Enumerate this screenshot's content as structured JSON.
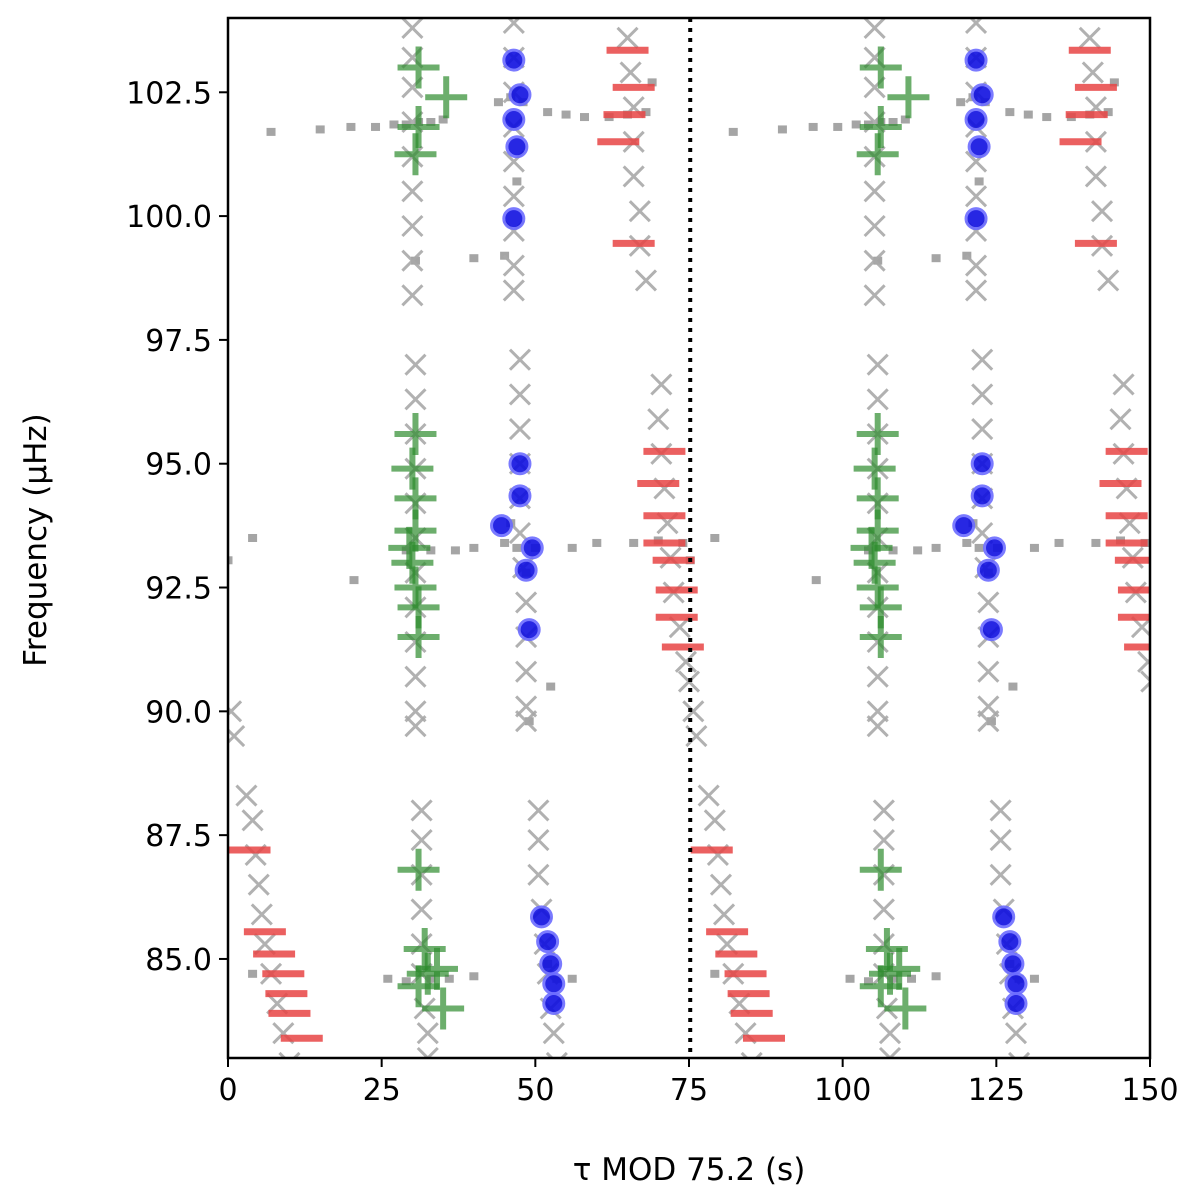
{
  "chart_data": {
    "type": "scatter",
    "title": "",
    "xlabel": "τ MOD 75.2 (s)",
    "ylabel": "Frequency (μHz)",
    "xlim": [
      0,
      150
    ],
    "ylim": [
      83.0,
      104.0
    ],
    "grid": false,
    "legend": "none",
    "xticks": [
      "0",
      "25",
      "50",
      "75",
      "100",
      "125",
      "150"
    ],
    "yticks": [
      "85.0",
      "87.5",
      "90.0",
      "92.5",
      "95.0",
      "97.5",
      "100.0",
      "102.5"
    ],
    "period": 75.2,
    "vline": {
      "x": 75.2,
      "style": "dotted",
      "color": "#000000"
    },
    "marker_colors": {
      "background_x": "#a8a8a8",
      "background_square": "#a0a0a0",
      "green_plus": "#2e8b2e",
      "blue_circle": "#1010e0",
      "red_dash": "#e84545"
    },
    "series": [
      {
        "marker": "x",
        "points": [
          [
            30,
            103.8
          ],
          [
            30,
            103.2
          ],
          [
            30,
            102.6
          ],
          [
            30,
            101.9
          ],
          [
            30,
            101.2
          ],
          [
            30,
            100.5
          ],
          [
            30,
            99.8
          ],
          [
            30,
            99.1
          ],
          [
            30,
            98.4
          ],
          [
            30.5,
            97.0
          ],
          [
            30.5,
            96.3
          ],
          [
            30.5,
            95.6
          ],
          [
            30.5,
            94.9
          ],
          [
            30.5,
            94.2
          ],
          [
            30.5,
            93.5
          ],
          [
            30.5,
            92.8
          ],
          [
            30.5,
            92.1
          ],
          [
            30.5,
            91.4
          ],
          [
            30.5,
            90.7
          ],
          [
            30.5,
            90.0
          ],
          [
            30.5,
            89.7
          ],
          [
            46.5,
            103.9
          ],
          [
            46.5,
            103.2
          ],
          [
            46.5,
            102.5
          ],
          [
            46.5,
            101.8
          ],
          [
            46.5,
            101.1
          ],
          [
            46.5,
            100.4
          ],
          [
            46.5,
            99.7
          ],
          [
            46.5,
            99.0
          ],
          [
            46.5,
            98.5
          ],
          [
            47.5,
            97.1
          ],
          [
            47.5,
            96.4
          ],
          [
            47.5,
            95.7
          ],
          [
            47.5,
            95.0
          ],
          [
            47.5,
            94.3
          ],
          [
            47.5,
            93.6
          ],
          [
            48,
            92.9
          ],
          [
            48.5,
            92.2
          ],
          [
            48.5,
            91.5
          ],
          [
            48.5,
            90.8
          ],
          [
            48.5,
            90.1
          ],
          [
            48.5,
            89.8
          ],
          [
            65,
            103.6
          ],
          [
            65.5,
            102.9
          ],
          [
            66,
            102.2
          ],
          [
            66,
            101.5
          ],
          [
            66,
            100.8
          ],
          [
            67,
            100.1
          ],
          [
            67,
            99.4
          ],
          [
            68,
            98.7
          ],
          [
            70.5,
            96.6
          ],
          [
            70,
            95.9
          ],
          [
            70.5,
            95.2
          ],
          [
            71,
            94.5
          ],
          [
            71.5,
            93.8
          ],
          [
            72,
            93.1
          ],
          [
            72.5,
            92.4
          ],
          [
            73.5,
            91.7
          ],
          [
            74.5,
            91.0
          ],
          [
            75,
            90.6
          ],
          [
            0.5,
            90.0
          ],
          [
            1,
            89.5
          ],
          [
            3,
            88.3
          ],
          [
            4,
            87.8
          ],
          [
            4.5,
            87.1
          ],
          [
            5,
            86.5
          ],
          [
            5.5,
            85.9
          ],
          [
            6,
            85.3
          ],
          [
            7,
            84.7
          ],
          [
            8,
            84.1
          ],
          [
            9,
            83.5
          ],
          [
            10,
            82.9
          ],
          [
            31.5,
            88.0
          ],
          [
            31.5,
            87.4
          ],
          [
            31.5,
            86.7
          ],
          [
            31.5,
            86.0
          ],
          [
            31.5,
            85.3
          ],
          [
            31.5,
            84.7
          ],
          [
            32,
            84.0
          ],
          [
            32.5,
            83.5
          ],
          [
            32.5,
            83.0
          ],
          [
            50.5,
            88.0
          ],
          [
            50.5,
            87.4
          ],
          [
            50.5,
            86.7
          ],
          [
            51,
            86.0
          ],
          [
            51.5,
            85.3
          ],
          [
            52,
            84.7
          ],
          [
            52.5,
            84.0
          ],
          [
            53,
            83.5
          ],
          [
            53.5,
            82.9
          ]
        ]
      },
      {
        "marker": "square",
        "points": [
          [
            7,
            101.7
          ],
          [
            15,
            101.75
          ],
          [
            20,
            101.8
          ],
          [
            24,
            101.8
          ],
          [
            27,
            101.85
          ],
          [
            29,
            101.85
          ],
          [
            31,
            101.9
          ],
          [
            33,
            101.9
          ],
          [
            35,
            101.95
          ],
          [
            44,
            102.3
          ],
          [
            46,
            102.4
          ],
          [
            48,
            102.3
          ],
          [
            52,
            102.1
          ],
          [
            55,
            102.05
          ],
          [
            58,
            102.0
          ],
          [
            62,
            102.0
          ],
          [
            65,
            102.05
          ],
          [
            68,
            102.1
          ],
          [
            69,
            102.7
          ],
          [
            30.5,
            99.1
          ],
          [
            40,
            99.15
          ],
          [
            45,
            99.2
          ],
          [
            47,
            100.7
          ],
          [
            0,
            93.05
          ],
          [
            4,
            93.5
          ],
          [
            20.5,
            92.65
          ],
          [
            29,
            93.25
          ],
          [
            33,
            93.25
          ],
          [
            37,
            93.25
          ],
          [
            40,
            93.3
          ],
          [
            45,
            93.4
          ],
          [
            47,
            93.3
          ],
          [
            50,
            93.3
          ],
          [
            56,
            93.3
          ],
          [
            60,
            93.4
          ],
          [
            66,
            93.4
          ],
          [
            70,
            93.45
          ],
          [
            74,
            93.4
          ],
          [
            46,
            93.8
          ],
          [
            48.5,
            92.8
          ],
          [
            52.5,
            90.5
          ],
          [
            49,
            89.8
          ],
          [
            4,
            84.7
          ],
          [
            26,
            84.6
          ],
          [
            29,
            84.55
          ],
          [
            33,
            84.6
          ],
          [
            36,
            84.6
          ],
          [
            40,
            84.65
          ],
          [
            52,
            84.9
          ],
          [
            53.5,
            84.6
          ],
          [
            56,
            84.6
          ]
        ]
      },
      {
        "marker": "plus",
        "points": [
          [
            31,
            103.0
          ],
          [
            35.5,
            102.4
          ],
          [
            31,
            101.8
          ],
          [
            30.5,
            101.25
          ],
          [
            30.5,
            95.6
          ],
          [
            30,
            94.9
          ],
          [
            30.5,
            94.3
          ],
          [
            30.5,
            93.65
          ],
          [
            29.5,
            93.3
          ],
          [
            30,
            93.0
          ],
          [
            30.5,
            92.5
          ],
          [
            31,
            92.1
          ],
          [
            31,
            91.5
          ],
          [
            31,
            86.8
          ],
          [
            32,
            85.2
          ],
          [
            32.5,
            84.7
          ],
          [
            31,
            84.45
          ],
          [
            34,
            84.8
          ],
          [
            35,
            84.0
          ]
        ]
      },
      {
        "marker": "circle",
        "points": [
          [
            46.5,
            103.15
          ],
          [
            47.5,
            102.45
          ],
          [
            46.5,
            101.95
          ],
          [
            47,
            101.4
          ],
          [
            46.5,
            99.95
          ],
          [
            47.5,
            95.0
          ],
          [
            47.5,
            94.35
          ],
          [
            44.5,
            93.75
          ],
          [
            49.5,
            93.3
          ],
          [
            48.5,
            92.85
          ],
          [
            49,
            91.65
          ],
          [
            51,
            85.85
          ],
          [
            52,
            85.35
          ],
          [
            52.5,
            84.9
          ],
          [
            53,
            84.5
          ],
          [
            53,
            84.1
          ]
        ]
      },
      {
        "marker": "dash",
        "points": [
          [
            65,
            103.35
          ],
          [
            66,
            102.6
          ],
          [
            64.5,
            102.05
          ],
          [
            63.5,
            101.5
          ],
          [
            66,
            99.45
          ],
          [
            71,
            95.25
          ],
          [
            70,
            94.6
          ],
          [
            71,
            93.95
          ],
          [
            71,
            93.4
          ],
          [
            72.5,
            93.05
          ],
          [
            73,
            92.45
          ],
          [
            73,
            91.9
          ],
          [
            74,
            91.3
          ],
          [
            3.5,
            87.2
          ],
          [
            6,
            85.55
          ],
          [
            7.5,
            85.1
          ],
          [
            9,
            84.7
          ],
          [
            9.5,
            84.3
          ],
          [
            10,
            83.9
          ],
          [
            12,
            83.4
          ]
        ]
      }
    ]
  }
}
